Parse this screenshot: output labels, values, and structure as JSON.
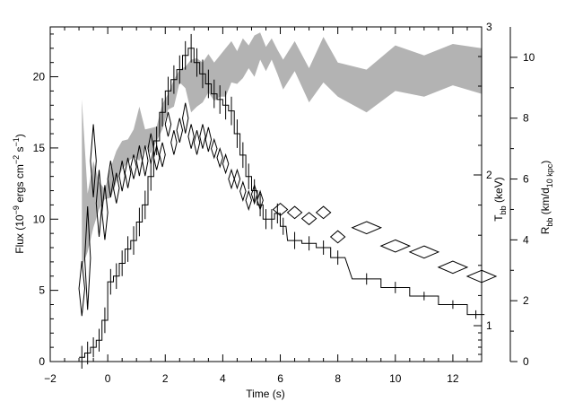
{
  "chart_data": {
    "type": "line",
    "xlabel": "Time (s)",
    "xlim": [
      -2,
      13
    ],
    "x_ticks": [
      -2,
      0,
      2,
      4,
      6,
      8,
      10,
      12
    ],
    "y_left": {
      "label_main": "Flux (10",
      "label_exp1": "−9",
      "label_mid": " ergs cm",
      "label_exp2": "−2",
      "label_s": " s",
      "label_exp3": "−1",
      "label_close": ")",
      "lim": [
        0,
        23.5
      ],
      "ticks": [
        0,
        5,
        10,
        15,
        20
      ]
    },
    "y_right1": {
      "label_main": "T",
      "label_sub": "bb",
      "label_rest": " (keV)",
      "ticks": [
        1,
        2,
        3
      ],
      "comment": "non-linear temperature axis"
    },
    "y_right2": {
      "label_main": "R",
      "label_sub": "bb",
      "label_rest": " (km/d",
      "label_sub2": "10 kpc",
      "label_close": ")",
      "lim": [
        0,
        11
      ],
      "ticks": [
        0,
        2,
        4,
        6,
        8,
        10
      ]
    },
    "series": [
      {
        "style": "step-histogram-with-error-bars",
        "axis": "flux",
        "x": [
          -0.9,
          -0.7,
          -0.5,
          -0.3,
          -0.1,
          0.1,
          0.3,
          0.5,
          0.7,
          0.9,
          1.1,
          1.3,
          1.5,
          1.7,
          1.9,
          2.1,
          2.3,
          2.5,
          2.7,
          2.9,
          3.1,
          3.3,
          3.5,
          3.7,
          3.9,
          4.1,
          4.3,
          4.5,
          4.7,
          4.9,
          5.1,
          5.3,
          5.5,
          5.7,
          5.9,
          6.1,
          6.5,
          7.0,
          7.5,
          8.0,
          9.0,
          10.0,
          11.0,
          12.0,
          12.8
        ],
        "y": [
          0.3,
          0.6,
          1.0,
          1.5,
          2.9,
          5.6,
          6.0,
          6.9,
          7.9,
          8.5,
          9.8,
          11.0,
          13.0,
          15.5,
          17.5,
          19.0,
          19.8,
          20.5,
          21.5,
          22.0,
          21.0,
          20.2,
          19.5,
          18.8,
          18.4,
          18.0,
          17.6,
          16.0,
          14.5,
          13.0,
          12.0,
          11.0,
          10.0,
          10.0,
          10.4,
          9.5,
          8.5,
          8.3,
          8.0,
          7.3,
          5.8,
          5.2,
          4.6,
          4.0,
          3.3
        ],
        "err": [
          0.8,
          0.8,
          0.7,
          0.8,
          0.9,
          0.9,
          0.9,
          0.9,
          0.9,
          1.0,
          1.0,
          1.0,
          1.0,
          1.0,
          1.0,
          1.0,
          1.0,
          1.0,
          1.0,
          1.0,
          1.0,
          1.0,
          1.0,
          1.0,
          1.0,
          1.0,
          1.0,
          1.0,
          0.9,
          0.9,
          0.8,
          0.8,
          0.7,
          0.7,
          0.7,
          0.6,
          0.6,
          0.5,
          0.5,
          0.5,
          0.4,
          0.4,
          0.3,
          0.3,
          0.3
        ],
        "widths": [
          0.2,
          0.2,
          0.2,
          0.2,
          0.2,
          0.2,
          0.2,
          0.2,
          0.2,
          0.2,
          0.2,
          0.2,
          0.2,
          0.2,
          0.2,
          0.2,
          0.2,
          0.2,
          0.2,
          0.2,
          0.2,
          0.2,
          0.2,
          0.2,
          0.2,
          0.2,
          0.2,
          0.2,
          0.2,
          0.2,
          0.2,
          0.2,
          0.2,
          0.2,
          0.2,
          0.2,
          0.5,
          0.5,
          0.5,
          0.5,
          1.0,
          1.0,
          1.0,
          1.0,
          0.6
        ]
      },
      {
        "style": "shaded-band",
        "axis": "kT",
        "color": "#b3b3b3",
        "x": [
          -0.9,
          -0.7,
          -0.5,
          -0.3,
          -0.1,
          0.1,
          0.3,
          0.5,
          0.7,
          0.9,
          1.1,
          1.3,
          1.5,
          1.7,
          1.9,
          2.1,
          2.3,
          2.5,
          2.7,
          2.9,
          3.1,
          3.3,
          3.5,
          3.7,
          3.9,
          4.1,
          4.3,
          4.5,
          4.7,
          4.9,
          5.1,
          5.3,
          5.5,
          5.7,
          5.9,
          6.1,
          6.5,
          7.0,
          7.5,
          8.0,
          9.0,
          10.0,
          11.0,
          12.0,
          13.0
        ],
        "low": [
          6.6,
          7.7,
          9.4,
          10.7,
          11.4,
          11.5,
          12.6,
          13.5,
          14.0,
          14.4,
          14.1,
          15.2,
          14.6,
          15.5,
          16.3,
          17.7,
          17.9,
          19.6,
          19.2,
          17.5,
          17.9,
          18.2,
          18.9,
          18.3,
          18.6,
          18.6,
          19.6,
          19.5,
          19.9,
          20.6,
          20.0,
          21.2,
          20.4,
          21.2,
          20.2,
          19.1,
          20.4,
          18.2,
          19.6,
          18.6,
          17.5,
          19.0,
          18.6,
          19.4,
          18.8
        ],
        "high": [
          18.4,
          11.8,
          14.1,
          12.6,
          12.1,
          13.6,
          14.8,
          15.5,
          15.6,
          16.3,
          17.9,
          16.3,
          16.4,
          16.5,
          18.1,
          18.8,
          19.8,
          20.5,
          20.7,
          21.2,
          21.3,
          21.0,
          21.6,
          21.0,
          21.5,
          22.0,
          22.5,
          21.8,
          22.7,
          22.2,
          22.9,
          23.1,
          22.1,
          22.7,
          21.9,
          21.2,
          22.5,
          20.6,
          22.8,
          21.0,
          20.5,
          22.2,
          21.5,
          22.3,
          22.0
        ]
      },
      {
        "style": "diamonds",
        "axis": "radius",
        "x": [
          -0.9,
          -0.7,
          -0.5,
          -0.3,
          -0.1,
          0.1,
          0.3,
          0.5,
          0.7,
          0.9,
          1.1,
          1.3,
          1.5,
          1.7,
          1.9,
          2.1,
          2.3,
          2.5,
          2.7,
          2.9,
          3.1,
          3.3,
          3.5,
          3.7,
          3.9,
          4.1,
          4.3,
          4.5,
          4.7,
          4.9,
          5.1,
          5.3,
          6.0,
          6.5,
          7.0,
          7.5,
          8.0,
          9.0,
          10.0,
          11.0,
          12.0,
          13.0
        ],
        "y": [
          2.4,
          3.4,
          6.6,
          5.2,
          4.9,
          6.0,
          5.7,
          6.1,
          6.2,
          6.4,
          6.6,
          6.6,
          7.0,
          6.7,
          6.8,
          7.8,
          7.2,
          7.6,
          8.0,
          7.4,
          7.2,
          7.4,
          7.3,
          7.0,
          6.7,
          6.5,
          6.0,
          6.0,
          5.6,
          5.3,
          5.5,
          5.3,
          5.0,
          4.9,
          4.7,
          4.9,
          4.1,
          4.4,
          3.8,
          3.6,
          3.1,
          2.8
        ],
        "dx": [
          0.1,
          0.1,
          0.1,
          0.1,
          0.1,
          0.1,
          0.1,
          0.1,
          0.1,
          0.1,
          0.1,
          0.1,
          0.1,
          0.1,
          0.1,
          0.1,
          0.1,
          0.1,
          0.1,
          0.1,
          0.1,
          0.1,
          0.1,
          0.1,
          0.1,
          0.1,
          0.1,
          0.1,
          0.1,
          0.1,
          0.1,
          0.1,
          0.25,
          0.25,
          0.25,
          0.25,
          0.25,
          0.5,
          0.5,
          0.5,
          0.5,
          0.5
        ],
        "dy": [
          0.9,
          1.7,
          1.2,
          1.1,
          0.9,
          0.6,
          0.5,
          0.5,
          0.5,
          0.4,
          0.5,
          0.5,
          0.5,
          0.4,
          0.4,
          0.4,
          0.4,
          0.4,
          0.5,
          0.4,
          0.4,
          0.4,
          0.4,
          0.3,
          0.3,
          0.3,
          0.3,
          0.3,
          0.3,
          0.3,
          0.3,
          0.3,
          0.2,
          0.2,
          0.2,
          0.2,
          0.2,
          0.2,
          0.2,
          0.2,
          0.2,
          0.2
        ]
      }
    ]
  }
}
